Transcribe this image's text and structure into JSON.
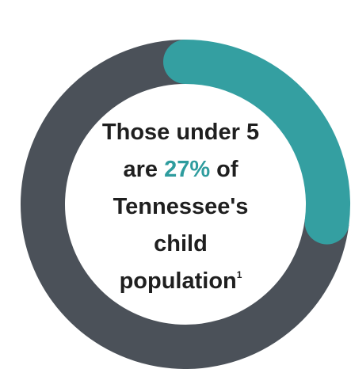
{
  "chart_data": {
    "type": "pie",
    "values": [
      27,
      73
    ],
    "colors": [
      "#349fa1",
      "#4b5159"
    ],
    "text": {
      "line1": "Those under 5",
      "line2_pre": "are ",
      "line2_pct": "27%",
      "line2_post": " of",
      "line3": "Tennessee's",
      "line4": "child",
      "line5": "population",
      "footnote": "1"
    }
  }
}
